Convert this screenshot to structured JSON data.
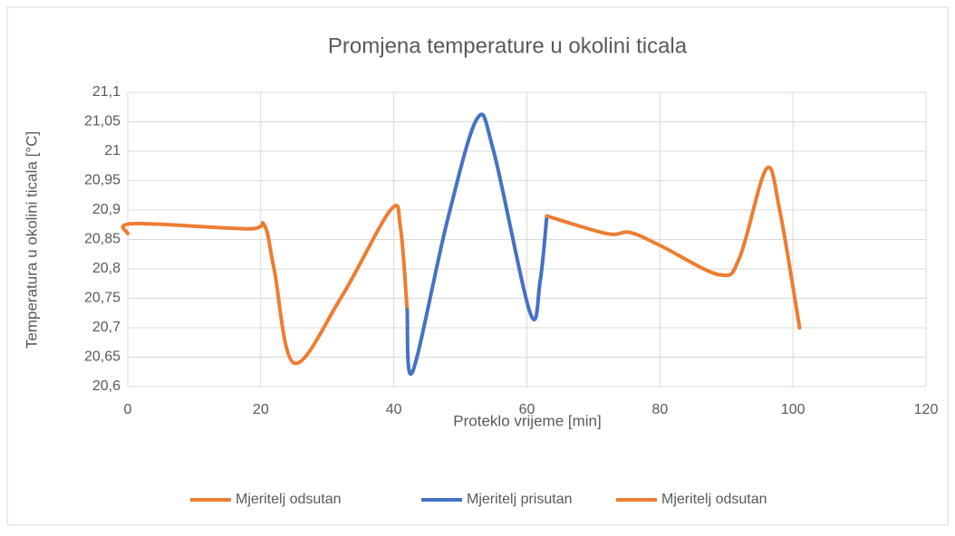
{
  "chart_data": {
    "type": "line",
    "title": "Promjena temperature u okolini ticala",
    "x_label": "Proteklo vrijeme [min]",
    "y_label": "Temperatura u okolini ticala [°C]",
    "xlim": [
      0,
      120
    ],
    "xticks": [
      0,
      20,
      40,
      60,
      80,
      100,
      120
    ],
    "ylim": [
      20.6,
      21.1
    ],
    "yticks": [
      {
        "value": 20.6,
        "label": "20,6"
      },
      {
        "value": 20.65,
        "label": "20,65"
      },
      {
        "value": 20.7,
        "label": "20,7"
      },
      {
        "value": 20.75,
        "label": "20,75"
      },
      {
        "value": 20.8,
        "label": "20,8"
      },
      {
        "value": 20.85,
        "label": "20,85"
      },
      {
        "value": 20.9,
        "label": "20,9"
      },
      {
        "value": 20.95,
        "label": "20,95"
      },
      21,
      {
        "value": 21.05,
        "label": "21,05"
      },
      {
        "value": 21.1,
        "label": "21,1"
      }
    ],
    "grid": true,
    "legend": "bottom",
    "series": [
      {
        "name": "Mjeritelj odsutan",
        "color": "#ED7D31",
        "x": [
          0,
          0.8,
          18,
          20.5,
          22,
          25,
          32,
          39.5,
          41,
          42
        ],
        "values": [
          20.86,
          20.877,
          20.868,
          20.875,
          20.8,
          20.64,
          20.75,
          20.9,
          20.87,
          20.73
        ]
      },
      {
        "name": "Mjeritelj prisutan",
        "color": "#4472C4",
        "x": [
          42,
          42.8,
          48,
          52.5,
          55,
          60.5,
          62,
          63
        ],
        "values": [
          20.73,
          20.625,
          20.88,
          21.055,
          21.0,
          20.725,
          20.78,
          20.89
        ]
      },
      {
        "name": "Mjeritelj odsutan",
        "color": "#ED7D31",
        "x": [
          63,
          72,
          75.5,
          80,
          89,
          92,
          96,
          98,
          101
        ],
        "values": [
          20.89,
          20.86,
          20.862,
          20.84,
          20.79,
          20.82,
          20.97,
          20.9,
          20.7
        ]
      }
    ]
  }
}
